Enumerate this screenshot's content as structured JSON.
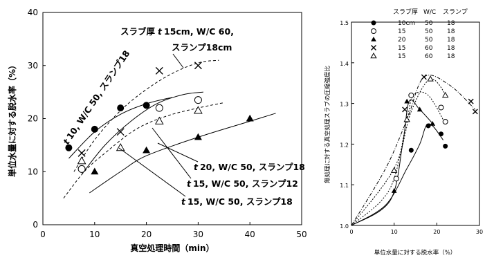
{
  "chart_data": [
    {
      "type": "scatter",
      "xlabel": "真空処理時間（min）",
      "ylabel": "単位水量に対する脱水率（%）",
      "xlim": [
        0,
        50
      ],
      "ylim": [
        0,
        40
      ],
      "xticks": [
        "0",
        "10",
        "20",
        "30",
        "40",
        "50"
      ],
      "yticks": [
        "0",
        "10",
        "20",
        "30",
        "40"
      ],
      "series": [
        {
          "name": "t 10, W/C 50, スランプ18",
          "marker": "filled-circle",
          "line": "solid",
          "points": [
            [
              5,
              14.5
            ],
            [
              10,
              18
            ],
            [
              15,
              22
            ],
            [
              20,
              22.5
            ]
          ],
          "curve": [
            [
              5,
              12.5
            ],
            [
              10,
              17.5
            ],
            [
              15,
              20.8
            ],
            [
              20,
              22.8
            ],
            [
              25,
              24
            ]
          ]
        },
        {
          "name": "t 15, W/C 50, スランプ12",
          "marker": "open-circle",
          "line": "solid",
          "points": [
            [
              7.5,
              10.5
            ],
            [
              22.5,
              22
            ],
            [
              30,
              23.5
            ]
          ],
          "curve": [
            [
              7.5,
              9.5
            ],
            [
              12,
              15
            ],
            [
              17,
              19.5
            ],
            [
              22,
              22.8
            ],
            [
              27,
              24.5
            ],
            [
              31,
              25
            ]
          ]
        },
        {
          "name": "t 20, W/C 50, スランプ18",
          "marker": "filled-triangle",
          "line": "solid",
          "points": [
            [
              10,
              10
            ],
            [
              20,
              14
            ],
            [
              30,
              16.5
            ],
            [
              40,
              20
            ]
          ],
          "curve": [
            [
              9,
              6
            ],
            [
              15,
              10
            ],
            [
              20,
              13
            ],
            [
              30,
              16.5
            ],
            [
              40,
              19.5
            ],
            [
              45,
              21
            ]
          ]
        },
        {
          "name": "t 15cm, W/C 60, スランプ18cm",
          "marker": "cross",
          "line": "dashed",
          "points": [
            [
              7.5,
              13.5
            ],
            [
              15,
              17.5
            ],
            [
              22.5,
              29
            ],
            [
              30,
              30
            ]
          ],
          "curve": [
            [
              6,
              10
            ],
            [
              10,
              16
            ],
            [
              15,
              21.5
            ],
            [
              20,
              25.5
            ],
            [
              25,
              28.5
            ],
            [
              30,
              30.5
            ],
            [
              34,
              31
            ]
          ]
        },
        {
          "name": "t 15, W/C 50, スランプ18",
          "marker": "open-triangle",
          "line": "dashed",
          "points": [
            [
              7.5,
              12
            ],
            [
              15,
              14.5
            ],
            [
              22.5,
              19.5
            ],
            [
              30,
              21.5
            ]
          ],
          "curve": [
            [
              4,
              5
            ],
            [
              8,
              10
            ],
            [
              12,
              13.5
            ],
            [
              18,
              18
            ],
            [
              24,
              20.5
            ],
            [
              30,
              22
            ],
            [
              35,
              23
            ]
          ]
        }
      ],
      "annotations": {
        "a1_prefix": "スラブ厚",
        "a1_t": "t",
        "a1_main": "15cm, W/C 60,",
        "a1_line2": "スランプ18cm",
        "a2_t": "t",
        "a2_main": "10, W/C 50, スランプ18",
        "a3_t": "t",
        "a3_main": "20, W/C 50, スランプ18",
        "a4_t": "t",
        "a4_main": "15, W/C 50, スランプ12",
        "a5_t": "t",
        "a5_main": "15, W/C 50, スランプ18"
      }
    },
    {
      "type": "scatter",
      "xlabel": "単位水量に対する脱水率（%）",
      "ylabel": "無処理に対する真空処理スラブの圧縮強度比",
      "xlim": [
        0,
        30
      ],
      "ylim": [
        1.0,
        1.5
      ],
      "xticks": [
        "0",
        "10",
        "20",
        "30"
      ],
      "yticks": [
        "1.0",
        "1.1",
        "1.2",
        "1.3",
        "1.4",
        "1.5"
      ],
      "legend": {
        "headers": [
          "スラブ厚",
          "W/C",
          "スランプ"
        ],
        "rows": [
          [
            "10cm",
            "50",
            "18"
          ],
          [
            "15",
            "50",
            "18"
          ],
          [
            "20",
            "50",
            "18"
          ],
          [
            "15",
            "60",
            "18"
          ],
          [
            "15",
            "60",
            "18"
          ]
        ],
        "markers": [
          "filled-circle",
          "open-circle",
          "filled-triangle",
          "cross",
          "open-triangle"
        ],
        "placement": "top"
      },
      "series": [
        {
          "name": "10cm 50 18",
          "marker": "filled-circle",
          "points": [
            [
              14,
              1.185
            ],
            [
              18,
              1.245
            ],
            [
              21,
              1.225
            ],
            [
              22,
              1.195
            ]
          ],
          "curve": [
            [
              0,
              1.0
            ],
            [
              8,
              1.05
            ],
            [
              13,
              1.14
            ],
            [
              16,
              1.2
            ],
            [
              17.5,
              1.245
            ],
            [
              19,
              1.245
            ],
            [
              21.5,
              1.21
            ]
          ]
        },
        {
          "name": "15 50 18",
          "marker": "open-circle",
          "points": [
            [
              10.5,
              1.115
            ],
            [
              14,
              1.32
            ],
            [
              21,
              1.29
            ],
            [
              22,
              1.255
            ]
          ],
          "curve": [
            [
              0,
              1.0
            ],
            [
              9,
              1.09
            ],
            [
              13,
              1.26
            ],
            [
              14.5,
              1.32
            ],
            [
              18,
              1.32
            ],
            [
              22,
              1.25
            ]
          ]
        },
        {
          "name": "20 50 18",
          "marker": "filled-triangle",
          "points": [
            [
              10,
              1.085
            ],
            [
              13,
              1.305
            ],
            [
              16,
              1.285
            ],
            [
              19,
              1.25
            ]
          ],
          "curve": [
            [
              0,
              1.0
            ],
            [
              9,
              1.06
            ],
            [
              12,
              1.2
            ],
            [
              13.5,
              1.305
            ],
            [
              16,
              1.285
            ],
            [
              19.5,
              1.245
            ]
          ]
        },
        {
          "name": "15 60 18 (×)",
          "marker": "cross",
          "points": [
            [
              12.5,
              1.285
            ],
            [
              17,
              1.365
            ],
            [
              28,
              1.305
            ],
            [
              29,
              1.28
            ]
          ],
          "curve": [
            [
              0,
              1.0
            ],
            [
              8,
              1.14
            ],
            [
              13,
              1.26
            ],
            [
              17,
              1.365
            ],
            [
              23,
              1.345
            ],
            [
              29,
              1.285
            ]
          ]
        },
        {
          "name": "15 60 18 (△)",
          "marker": "open-triangle",
          "points": [
            [
              10,
              1.135
            ],
            [
              13,
              1.26
            ],
            [
              18.5,
              1.36
            ],
            [
              22,
              1.32
            ]
          ],
          "curve": [
            [
              0,
              1.0
            ],
            [
              10,
              1.14
            ],
            [
              14,
              1.28
            ],
            [
              18.5,
              1.36
            ],
            [
              22.5,
              1.315
            ]
          ]
        }
      ]
    }
  ]
}
